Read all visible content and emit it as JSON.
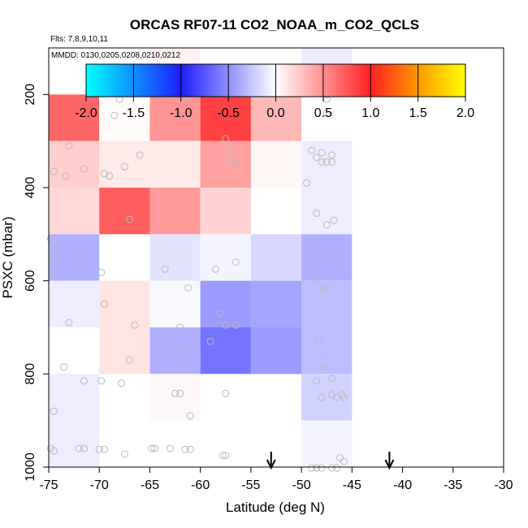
{
  "chart_data": {
    "type": "heatmap",
    "title": "ORCAS RF07-11 CO2_NOAA_m_CO2_QCLS",
    "subtitle_flights": "Flts: 7,8,9,10,11",
    "subtitle_dates": "MMDD: 0130,0205,0208,0210,0212",
    "xlabel": "Latitude (deg N)",
    "ylabel": "PSXC (mbar)",
    "xlim": [
      -75,
      -30
    ],
    "ylim": [
      1000,
      100
    ],
    "x_ticks": [
      -75,
      -70,
      -65,
      -60,
      -55,
      -50,
      -45,
      -40,
      -35,
      -30
    ],
    "x_tick_labels": [
      "-75",
      "-70",
      "-65",
      "-60",
      "-55",
      "-50",
      "-45",
      "-40",
      "-35",
      "-30"
    ],
    "y_ticks": [
      200,
      400,
      600,
      800,
      1000
    ],
    "y_tick_labels": [
      "200",
      "400",
      "600",
      "800",
      "1000"
    ],
    "colorbar": {
      "range": [
        -2.0,
        2.0
      ],
      "ticks": [
        -2.0,
        -1.5,
        -1.0,
        -0.5,
        0.0,
        0.5,
        1.0,
        1.5,
        2.0
      ],
      "tick_labels": [
        "-2.0",
        "-1.5",
        "-1.0",
        "-0.5",
        "0.0",
        "0.5",
        "1.0",
        "1.5",
        "2.0"
      ]
    },
    "colors": {
      "cyan": "#00ffff",
      "blue": "#1e1eff",
      "white": "#ffffff",
      "red": "#ff2020",
      "orange": "#ff9900",
      "yellow": "#ffff00",
      "points": "#bbbbbb"
    },
    "cells": [
      {
        "lon": [
          -65,
          -60
        ],
        "p": [
          100,
          200
        ],
        "value": 0.05
      },
      {
        "lon": [
          -50,
          -45
        ],
        "p": [
          100,
          200
        ],
        "value": -0.08
      },
      {
        "lon": [
          -75,
          -70
        ],
        "p": [
          200,
          300
        ],
        "value": 0.68
      },
      {
        "lon": [
          -70,
          -65
        ],
        "p": [
          200,
          300
        ],
        "value": 0.02
      },
      {
        "lon": [
          -65,
          -60
        ],
        "p": [
          200,
          300
        ],
        "value": 0.48
      },
      {
        "lon": [
          -60,
          -55
        ],
        "p": [
          200,
          300
        ],
        "value": 0.85
      },
      {
        "lon": [
          -55,
          -50
        ],
        "p": [
          200,
          300
        ],
        "value": 0.32
      },
      {
        "lon": [
          -75,
          -70
        ],
        "p": [
          300,
          400
        ],
        "value": 0.22
      },
      {
        "lon": [
          -70,
          -65
        ],
        "p": [
          300,
          400
        ],
        "value": 0.1
      },
      {
        "lon": [
          -65,
          -60
        ],
        "p": [
          300,
          400
        ],
        "value": 0.1
      },
      {
        "lon": [
          -60,
          -55
        ],
        "p": [
          300,
          400
        ],
        "value": 0.42
      },
      {
        "lon": [
          -55,
          -50
        ],
        "p": [
          300,
          400
        ],
        "value": 0.04
      },
      {
        "lon": [
          -50,
          -45
        ],
        "p": [
          300,
          400
        ],
        "value": -0.08
      },
      {
        "lon": [
          -75,
          -70
        ],
        "p": [
          400,
          500
        ],
        "value": 0.18
      },
      {
        "lon": [
          -70,
          -65
        ],
        "p": [
          400,
          500
        ],
        "value": 0.72
      },
      {
        "lon": [
          -65,
          -60
        ],
        "p": [
          400,
          500
        ],
        "value": 0.45
      },
      {
        "lon": [
          -60,
          -55
        ],
        "p": [
          400,
          500
        ],
        "value": 0.2
      },
      {
        "lon": [
          -50,
          -45
        ],
        "p": [
          400,
          500
        ],
        "value": -0.08
      },
      {
        "lon": [
          -75,
          -70
        ],
        "p": [
          500,
          600
        ],
        "value": -0.35
      },
      {
        "lon": [
          -65,
          -60
        ],
        "p": [
          500,
          600
        ],
        "value": -0.12
      },
      {
        "lon": [
          -60,
          -55
        ],
        "p": [
          500,
          600
        ],
        "value": -0.05
      },
      {
        "lon": [
          -55,
          -50
        ],
        "p": [
          500,
          600
        ],
        "value": -0.18
      },
      {
        "lon": [
          -50,
          -45
        ],
        "p": [
          500,
          600
        ],
        "value": -0.35
      },
      {
        "lon": [
          -75,
          -70
        ],
        "p": [
          600,
          700
        ],
        "value": -0.08
      },
      {
        "lon": [
          -70,
          -65
        ],
        "p": [
          600,
          700
        ],
        "value": 0.12
      },
      {
        "lon": [
          -65,
          -60
        ],
        "p": [
          600,
          700
        ],
        "value": -0.03
      },
      {
        "lon": [
          -60,
          -55
        ],
        "p": [
          600,
          700
        ],
        "value": -0.45
      },
      {
        "lon": [
          -55,
          -50
        ],
        "p": [
          600,
          700
        ],
        "value": -0.4
      },
      {
        "lon": [
          -50,
          -45
        ],
        "p": [
          600,
          700
        ],
        "value": -0.3
      },
      {
        "lon": [
          -70,
          -65
        ],
        "p": [
          700,
          800
        ],
        "value": 0.12
      },
      {
        "lon": [
          -65,
          -60
        ],
        "p": [
          700,
          800
        ],
        "value": -0.35
      },
      {
        "lon": [
          -60,
          -55
        ],
        "p": [
          700,
          800
        ],
        "value": -0.62
      },
      {
        "lon": [
          -55,
          -50
        ],
        "p": [
          700,
          800
        ],
        "value": -0.45
      },
      {
        "lon": [
          -50,
          -45
        ],
        "p": [
          700,
          800
        ],
        "value": -0.3
      },
      {
        "lon": [
          -75,
          -70
        ],
        "p": [
          800,
          900
        ],
        "value": -0.08
      },
      {
        "lon": [
          -65,
          -60
        ],
        "p": [
          800,
          900
        ],
        "value": 0.03
      },
      {
        "lon": [
          -50,
          -45
        ],
        "p": [
          800,
          900
        ],
        "value": -0.2
      },
      {
        "lon": [
          -75,
          -70
        ],
        "p": [
          900,
          1000
        ],
        "value": -0.08
      },
      {
        "lon": [
          -50,
          -45
        ],
        "p": [
          900,
          1000
        ],
        "value": -0.05
      }
    ],
    "points": [
      [
        -71.0,
        180
      ],
      [
        -68.0,
        210
      ],
      [
        -68.5,
        245
      ],
      [
        -73.0,
        310
      ],
      [
        -71.5,
        360
      ],
      [
        -73.3,
        375
      ],
      [
        -74.5,
        365
      ],
      [
        -69.5,
        370
      ],
      [
        -69.0,
        375
      ],
      [
        -67.5,
        355
      ],
      [
        -66.0,
        330
      ],
      [
        -67.0,
        468
      ],
      [
        -74.8,
        510
      ],
      [
        -74.5,
        545
      ],
      [
        -69.8,
        582
      ],
      [
        -63.5,
        575
      ],
      [
        -58.5,
        575
      ],
      [
        -56.5,
        560
      ],
      [
        -61.2,
        615
      ],
      [
        -48.5,
        595
      ],
      [
        -47.8,
        620
      ],
      [
        -47.5,
        615
      ],
      [
        -69.5,
        650
      ],
      [
        -73.0,
        690
      ],
      [
        -66.5,
        695
      ],
      [
        -62.0,
        700
      ],
      [
        -57.5,
        695
      ],
      [
        -58.0,
        670
      ],
      [
        -61.5,
        750
      ],
      [
        -59.0,
        730
      ],
      [
        -56.5,
        695
      ],
      [
        -73.5,
        785
      ],
      [
        -67.0,
        770
      ],
      [
        -69.8,
        815
      ],
      [
        -71.5,
        815
      ],
      [
        -67.8,
        820
      ],
      [
        -57.5,
        842
      ],
      [
        -62.5,
        842
      ],
      [
        -62.0,
        842
      ],
      [
        -61.0,
        890
      ],
      [
        -74.5,
        880
      ],
      [
        -72.0,
        960
      ],
      [
        -71.5,
        960
      ],
      [
        -70.0,
        962
      ],
      [
        -69.5,
        962
      ],
      [
        -67.5,
        972
      ],
      [
        -64.8,
        960
      ],
      [
        -64.5,
        960
      ],
      [
        -63.0,
        960
      ],
      [
        -61.5,
        962
      ],
      [
        -61.0,
        962
      ],
      [
        -57.8,
        975
      ],
      [
        -57.5,
        975
      ],
      [
        -74.5,
        965
      ],
      [
        -74.8,
        960
      ],
      [
        -65.0,
        180
      ],
      [
        -61.5,
        210
      ],
      [
        -59.5,
        185
      ],
      [
        -59.0,
        185
      ],
      [
        -58.0,
        185
      ],
      [
        -57.0,
        185
      ],
      [
        -56.5,
        185
      ],
      [
        -57.5,
        295
      ],
      [
        -57.2,
        322
      ],
      [
        -57.0,
        345
      ],
      [
        -56.5,
        350
      ],
      [
        -50.5,
        178
      ],
      [
        -48.0,
        185
      ],
      [
        -47.5,
        200
      ],
      [
        -47.5,
        210
      ],
      [
        -47.5,
        240
      ],
      [
        -49.0,
        320
      ],
      [
        -48.0,
        325
      ],
      [
        -48.0,
        345
      ],
      [
        -47.5,
        345
      ],
      [
        -47.0,
        345
      ],
      [
        -47.0,
        330
      ],
      [
        -48.5,
        335
      ],
      [
        -49.5,
        390
      ],
      [
        -48.5,
        455
      ],
      [
        -47.5,
        480
      ],
      [
        -46.8,
        470
      ],
      [
        -49.5,
        510
      ],
      [
        -48.5,
        815
      ],
      [
        -47.0,
        810
      ],
      [
        -48.0,
        850
      ],
      [
        -47.0,
        845
      ],
      [
        -46.5,
        850
      ],
      [
        -46.0,
        845
      ],
      [
        -45.8,
        850
      ],
      [
        -47.8,
        785
      ],
      [
        -48.3,
        725
      ],
      [
        -48.5,
        1002
      ],
      [
        -49.0,
        1002
      ],
      [
        -48.0,
        1002
      ],
      [
        -47.0,
        1002
      ],
      [
        -46.5,
        1002
      ],
      [
        -45.8,
        988
      ],
      [
        -46.2,
        980
      ]
    ],
    "arrows_lat": [
      -53,
      -41.3
    ]
  }
}
